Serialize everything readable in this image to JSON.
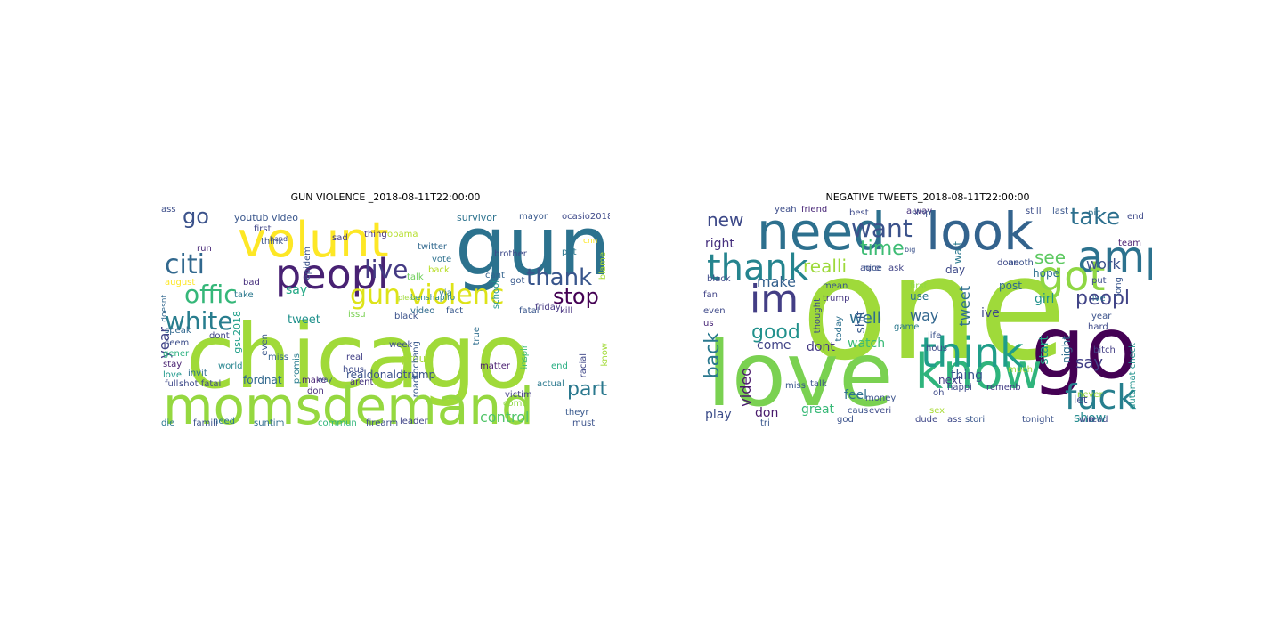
{
  "figure": {
    "panels": [
      {
        "title": "GUN VIOLENCE _2018-08-11T22:00:00",
        "words": [
          {
            "text": "chicago",
            "color": "#a0da39"
          },
          {
            "text": "momsdemand",
            "color": "#95d840"
          },
          {
            "text": "gun",
            "color": "#2c728e"
          },
          {
            "text": "volunt",
            "color": "#fde725"
          },
          {
            "text": "peopl",
            "color": "#482173"
          },
          {
            "text": "gun violenc",
            "color": "#dde318"
          },
          {
            "text": "citi",
            "color": "#31688e"
          },
          {
            "text": "offic",
            "color": "#35b779"
          },
          {
            "text": "white",
            "color": "#287d8e"
          },
          {
            "text": "live",
            "color": "#443a83"
          },
          {
            "text": "thank",
            "color": "#39568c"
          },
          {
            "text": "stop",
            "color": "#440154"
          },
          {
            "text": "part",
            "color": "#2a788e"
          },
          {
            "text": "control",
            "color": "#52c569"
          },
          {
            "text": "go",
            "color": "#3b528b"
          },
          {
            "text": "say",
            "color": "#22a884"
          },
          {
            "text": "year",
            "color": "#414487"
          },
          {
            "text": "tweet",
            "color": "#21918c"
          },
          {
            "text": "fordnat",
            "color": "#31688e"
          },
          {
            "text": "realdonaldtrump",
            "color": "#3b528b"
          },
          {
            "text": "youtub video",
            "color": "#39568c"
          },
          {
            "text": "survivor",
            "color": "#2c728e"
          },
          {
            "text": "mayor",
            "color": "#38588c"
          },
          {
            "text": "ocasio2018",
            "color": "#3e4989"
          },
          {
            "text": "obama",
            "color": "#b5de2b"
          },
          {
            "text": "thing",
            "color": "#46327e"
          },
          {
            "text": "sad",
            "color": "#443983"
          },
          {
            "text": "epidem",
            "color": "#3b528b"
          },
          {
            "text": "august",
            "color": "#fde725"
          },
          {
            "text": "run",
            "color": "#482878"
          },
          {
            "text": "first",
            "color": "#404688"
          },
          {
            "text": "hand",
            "color": "#3f4788"
          },
          {
            "text": "twitter",
            "color": "#31688e"
          },
          {
            "text": "vote",
            "color": "#2d708e"
          },
          {
            "text": "talk",
            "color": "#6ece58"
          },
          {
            "text": "got",
            "color": "#38598c"
          },
          {
            "text": "school",
            "color": "#20928c"
          },
          {
            "text": "brother",
            "color": "#3e4a89"
          },
          {
            "text": "cant",
            "color": "#33638d"
          },
          {
            "text": "put",
            "color": "#2a768e"
          },
          {
            "text": "blame",
            "color": "#a8db34"
          },
          {
            "text": "via",
            "color": "#2a788e"
          },
          {
            "text": "benshapiro",
            "color": "#26828e"
          },
          {
            "text": "black",
            "color": "#3b528b"
          },
          {
            "text": "video",
            "color": "#306a8e"
          },
          {
            "text": "fact",
            "color": "#38588c"
          },
          {
            "text": "fatal",
            "color": "#39568c"
          },
          {
            "text": "friday",
            "color": "#453882"
          },
          {
            "text": "kill",
            "color": "#46307e"
          },
          {
            "text": "issu",
            "color": "#7ad151"
          },
          {
            "text": "speak",
            "color": "#31688e"
          },
          {
            "text": "dont",
            "color": "#414487"
          },
          {
            "text": "seem",
            "color": "#3d4e8a"
          },
          {
            "text": "gener",
            "color": "#2ab07f"
          },
          {
            "text": "stay",
            "color": "#482071"
          },
          {
            "text": "gsu2018",
            "color": "#1f9f88"
          },
          {
            "text": "world",
            "color": "#25848e"
          },
          {
            "text": "invit",
            "color": "#2e6e8e"
          },
          {
            "text": "full",
            "color": "#3f4889"
          },
          {
            "text": "love",
            "color": "#1f988b"
          },
          {
            "text": "miss",
            "color": "#34618d"
          },
          {
            "text": "promis",
            "color": "#287c8e"
          },
          {
            "text": "real",
            "color": "#424086"
          },
          {
            "text": "hous",
            "color": "#3e4a89"
          },
          {
            "text": "arent",
            "color": "#46337e"
          },
          {
            "text": "week",
            "color": "#3d4d8a"
          },
          {
            "text": "proud",
            "color": "#a5db36"
          },
          {
            "text": "matter",
            "color": "#481d6f"
          },
          {
            "text": "inspir",
            "color": "#37b878"
          },
          {
            "text": "end",
            "color": "#26ad81"
          },
          {
            "text": "actual",
            "color": "#2a788e"
          },
          {
            "text": "racial",
            "color": "#3f4788"
          },
          {
            "text": "know",
            "color": "#a2da37"
          },
          {
            "text": "shot fatal",
            "color": "#3e4a89"
          },
          {
            "text": "make",
            "color": "#482475"
          },
          {
            "text": "way",
            "color": "#3b528b"
          },
          {
            "text": "don",
            "color": "#472d7b"
          },
          {
            "text": "come",
            "color": "#8fd744"
          },
          {
            "text": "victim",
            "color": "#433e85"
          },
          {
            "text": "theyr",
            "color": "#38588c"
          },
          {
            "text": "must",
            "color": "#3b528b"
          },
          {
            "text": "need",
            "color": "#2b748e"
          },
          {
            "text": "famili",
            "color": "#3b528b"
          },
          {
            "text": "die",
            "color": "#2a788e"
          },
          {
            "text": "suntim",
            "color": "#2f6c8e"
          },
          {
            "text": "commun",
            "color": "#31b57b"
          },
          {
            "text": "firearm",
            "color": "#3d4d8a"
          },
          {
            "text": "leader",
            "color": "#404588"
          },
          {
            "text": "true",
            "color": "#2e6e8e"
          },
          {
            "text": "roadtochang",
            "color": "#38598c"
          },
          {
            "text": "doesnt",
            "color": "#31678e"
          },
          {
            "text": "pleas",
            "color": "#a0da39"
          },
          {
            "text": "bad",
            "color": "#472f7d"
          },
          {
            "text": "take",
            "color": "#2a788e"
          },
          {
            "text": "even",
            "color": "#39568c"
          },
          {
            "text": "back",
            "color": "#b8de29"
          },
          {
            "text": "think",
            "color": "#3b528b"
          },
          {
            "text": "cnn",
            "color": "#fde725"
          },
          {
            "text": "ass",
            "color": "#3d4e8a"
          }
        ]
      },
      {
        "title": "NEGATIVE TWEETS_2018-08-11T22:00:00",
        "words": [
          {
            "text": "one",
            "color": "#9fda3a"
          },
          {
            "text": "love",
            "color": "#7ad151"
          },
          {
            "text": "go",
            "color": "#440154"
          },
          {
            "text": "need",
            "color": "#2d708e"
          },
          {
            "text": "look",
            "color": "#33638d"
          },
          {
            "text": "know",
            "color": "#2fb47c"
          },
          {
            "text": "want",
            "color": "#3b528b"
          },
          {
            "text": "amp",
            "color": "#2c728e"
          },
          {
            "text": "got",
            "color": "#8fd744"
          },
          {
            "text": "think",
            "color": "#1f9e89"
          },
          {
            "text": "im",
            "color": "#433e85"
          },
          {
            "text": "thank",
            "color": "#25848e"
          },
          {
            "text": "fuck",
            "color": "#277f8e"
          },
          {
            "text": "take",
            "color": "#2d708e"
          },
          {
            "text": "new",
            "color": "#3e4a89"
          },
          {
            "text": "good",
            "color": "#21918c"
          },
          {
            "text": "time",
            "color": "#3dbc74"
          },
          {
            "text": "back",
            "color": "#2a788e"
          },
          {
            "text": "video",
            "color": "#48186a"
          },
          {
            "text": "peopl",
            "color": "#414487"
          },
          {
            "text": "see",
            "color": "#5ec962"
          },
          {
            "text": "say",
            "color": "#424086"
          },
          {
            "text": "work",
            "color": "#3b528b"
          },
          {
            "text": "right",
            "color": "#46307e"
          },
          {
            "text": "realli",
            "color": "#9dd93b"
          },
          {
            "text": "make",
            "color": "#34608d"
          },
          {
            "text": "well",
            "color": "#2e6f8e"
          },
          {
            "text": "come",
            "color": "#414487"
          },
          {
            "text": "watch",
            "color": "#3aba76"
          },
          {
            "text": "dont",
            "color": "#443983"
          },
          {
            "text": "great",
            "color": "#38b977"
          },
          {
            "text": "feel",
            "color": "#2d708e"
          },
          {
            "text": "play",
            "color": "#3d4e8a"
          },
          {
            "text": "don",
            "color": "#481a6c"
          },
          {
            "text": "way",
            "color": "#31668e"
          },
          {
            "text": "thing",
            "color": "#39568c"
          },
          {
            "text": "ive",
            "color": "#3f4788"
          },
          {
            "text": "tweet",
            "color": "#2e6e8e"
          },
          {
            "text": "shit",
            "color": "#37598c"
          },
          {
            "text": "use",
            "color": "#2c738e"
          },
          {
            "text": "day",
            "color": "#3e4989"
          },
          {
            "text": "hope",
            "color": "#2d708e"
          },
          {
            "text": "girl",
            "color": "#21918c"
          },
          {
            "text": "start",
            "color": "#1fa187"
          },
          {
            "text": "night",
            "color": "#2e6d8e"
          },
          {
            "text": "let",
            "color": "#3e4a89"
          },
          {
            "text": "show",
            "color": "#238a8d"
          },
          {
            "text": "never",
            "color": "#99d83d"
          },
          {
            "text": "yeah",
            "color": "#3d4d8a"
          },
          {
            "text": "friend",
            "color": "#482677"
          },
          {
            "text": "best",
            "color": "#3e4a89"
          },
          {
            "text": "alway",
            "color": "#46327e"
          },
          {
            "text": "stop",
            "color": "#3b528b"
          },
          {
            "text": "still",
            "color": "#3d4e8a"
          },
          {
            "text": "last",
            "color": "#39568c"
          },
          {
            "text": "pic",
            "color": "#2d708e"
          },
          {
            "text": "team",
            "color": "#481d6f"
          },
          {
            "text": "end",
            "color": "#3e4989"
          },
          {
            "text": "wait",
            "color": "#2a788e"
          },
          {
            "text": "big",
            "color": "#3b528b"
          },
          {
            "text": "post",
            "color": "#2f6b8e"
          },
          {
            "text": "mean",
            "color": "#39568c"
          },
          {
            "text": "trump",
            "color": "#453781"
          },
          {
            "text": "thought",
            "color": "#3e4a89"
          },
          {
            "text": "game",
            "color": "#2a788e"
          },
          {
            "text": "first",
            "color": "#8fd744"
          },
          {
            "text": "today",
            "color": "#2d708e"
          },
          {
            "text": "life",
            "color": "#3b528b"
          },
          {
            "text": "hous",
            "color": "#3e4a89"
          },
          {
            "text": "next",
            "color": "#433e85"
          },
          {
            "text": "miss",
            "color": "#39568c"
          },
          {
            "text": "agre",
            "color": "#3f4788"
          },
          {
            "text": "us",
            "color": "#482677"
          },
          {
            "text": "even",
            "color": "#3e4989"
          },
          {
            "text": "fan",
            "color": "#414487"
          },
          {
            "text": "put",
            "color": "#3d4e8a"
          },
          {
            "text": "year",
            "color": "#3b528b"
          },
          {
            "text": "long",
            "color": "#39568c"
          },
          {
            "text": "live",
            "color": "#2d708e"
          },
          {
            "text": "hard",
            "color": "#3e4a89"
          },
          {
            "text": "automat check",
            "color": "#20928c"
          },
          {
            "text": "bitch",
            "color": "#433e85"
          },
          {
            "text": "win",
            "color": "#3e4a89"
          },
          {
            "text": "tonight",
            "color": "#3b528b"
          },
          {
            "text": "stori",
            "color": "#39568c"
          },
          {
            "text": "ass",
            "color": "#3e4989"
          },
          {
            "text": "dude",
            "color": "#3f4788"
          },
          {
            "text": "caus",
            "color": "#3b528b"
          },
          {
            "text": "everi",
            "color": "#3e4a89"
          },
          {
            "text": "remenb",
            "color": "#433e85"
          },
          {
            "text": "much",
            "color": "#a0da39"
          },
          {
            "text": "done",
            "color": "#3e4a89"
          },
          {
            "text": "anoth",
            "color": "#3b528b"
          },
          {
            "text": "read",
            "color": "#3e4989"
          },
          {
            "text": "ask",
            "color": "#414487"
          },
          {
            "text": "talk",
            "color": "#3b528b"
          },
          {
            "text": "oh",
            "color": "#3e4a89"
          },
          {
            "text": "nice",
            "color": "#39568c"
          },
          {
            "text": "god",
            "color": "#3b528b"
          },
          {
            "text": "sex",
            "color": "#a8db34"
          },
          {
            "text": "black",
            "color": "#3e4989"
          },
          {
            "text": "happi",
            "color": "#3e4a89"
          },
          {
            "text": "money",
            "color": "#3b528b"
          },
          {
            "text": "tri",
            "color": "#39568c"
          }
        ]
      }
    ]
  }
}
